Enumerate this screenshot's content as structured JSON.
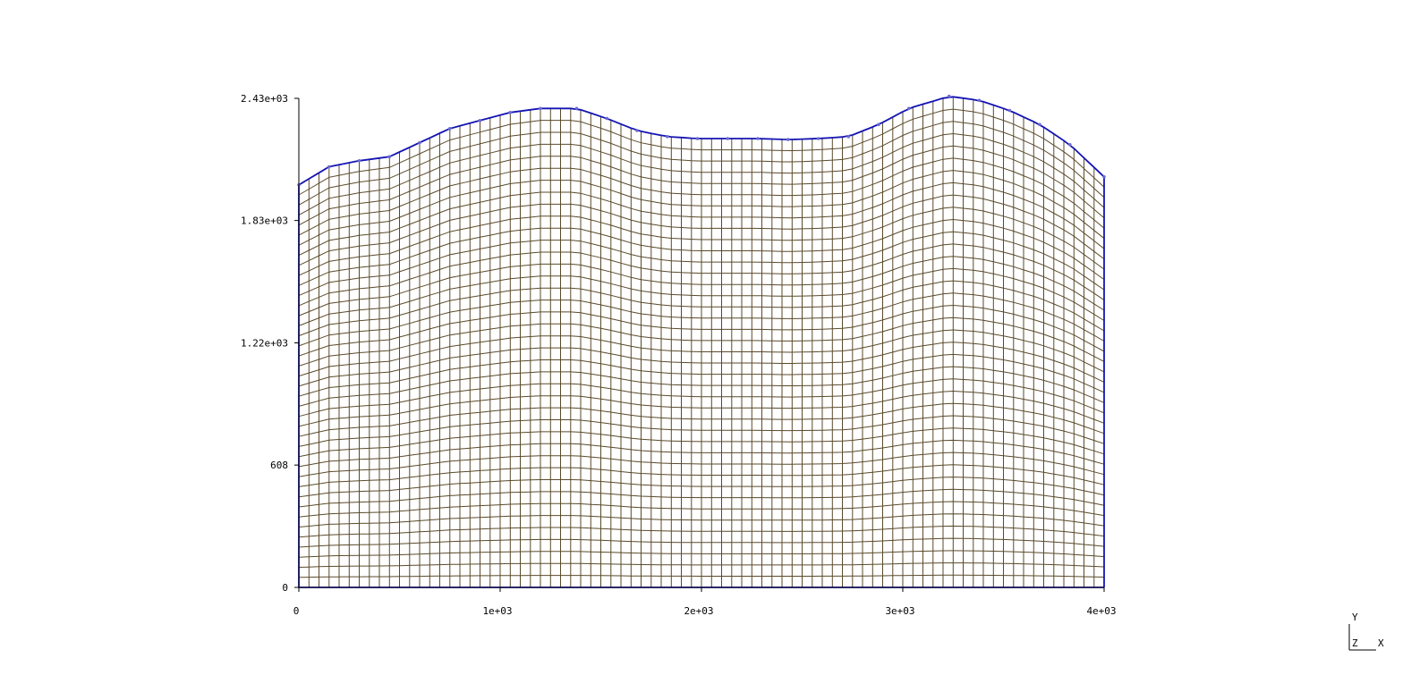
{
  "chart_data": {
    "type": "mesh",
    "title": "",
    "xlabel": "",
    "ylabel": "",
    "xlim": [
      0,
      4000
    ],
    "ylim": [
      0,
      2430
    ],
    "x_ticks": [
      {
        "value": 0,
        "label": "0"
      },
      {
        "value": 1000,
        "label": "1e+03"
      },
      {
        "value": 2000,
        "label": "2e+03"
      },
      {
        "value": 3000,
        "label": "3e+03"
      },
      {
        "value": 4000,
        "label": "4e+03"
      }
    ],
    "y_ticks": [
      {
        "value": 0,
        "label": "0"
      },
      {
        "value": 608,
        "label": "608"
      },
      {
        "value": 1215,
        "label": "1.22e+03"
      },
      {
        "value": 1823,
        "label": "1.83e+03"
      },
      {
        "value": 2430,
        "label": "2.43e+03"
      }
    ],
    "mesh": {
      "columns": 80,
      "rows": 40,
      "bottom_y": 0,
      "surface": {
        "x": [
          0,
          150,
          300,
          450,
          600,
          750,
          900,
          1050,
          1200,
          1380,
          1530,
          1680,
          1830,
          1980,
          2130,
          2280,
          2430,
          2580,
          2730,
          2880,
          3030,
          3230,
          3380,
          3530,
          3680,
          3830,
          4000
        ],
        "y": [
          2000,
          2090,
          2120,
          2140,
          2210,
          2280,
          2320,
          2360,
          2380,
          2380,
          2330,
          2270,
          2240,
          2230,
          2230,
          2230,
          2225,
          2230,
          2240,
          2300,
          2380,
          2440,
          2420,
          2370,
          2300,
          2200,
          2040
        ]
      },
      "line_color": "#5a4a2a",
      "boundary_color": "#1414b4"
    },
    "triad": {
      "y_label": "Y",
      "z_label": "Z",
      "x_label": "X"
    }
  }
}
